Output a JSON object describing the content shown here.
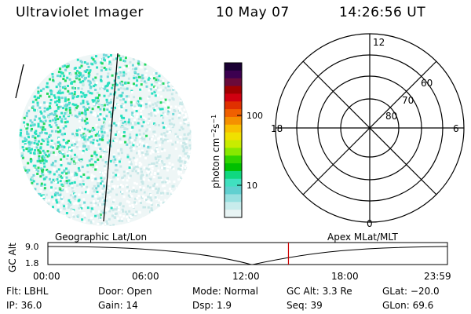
{
  "header": {
    "title": "Ultraviolet Imager",
    "date": "10 May 07",
    "time": "14:26:56 UT"
  },
  "colorbar": {
    "label": "photon cm-2s-1",
    "ticks": [
      "100",
      "10"
    ],
    "colors": [
      "#1a0033",
      "#3c0050",
      "#6a0a3a",
      "#a00000",
      "#d00010",
      "#e03000",
      "#f06000",
      "#f59000",
      "#f8c000",
      "#f0e000",
      "#c8ec00",
      "#88e800",
      "#30d400",
      "#00c000",
      "#10d880",
      "#40e0c0",
      "#60d0d0",
      "#98e0e0",
      "#c8ecec",
      "#e8f4f4"
    ]
  },
  "polar": {
    "mlt_labels": [
      "12",
      "18",
      "6",
      "0"
    ],
    "lat_labels": [
      "60",
      "70",
      "80"
    ]
  },
  "timeline": {
    "left_axis": "GC Alt",
    "y_ticks": [
      "9.0",
      "1.8"
    ],
    "left_label": "Geographic Lat/Lon",
    "right_label": "Apex MLat/MLT",
    "times": [
      "00:00",
      "06:00",
      "12:00",
      "18:00",
      "23:59"
    ],
    "marker_time_hours": 14.45,
    "marker_color": "#cc0000"
  },
  "info": {
    "flt": "Flt: LBHL",
    "ip": "IP: 36.0",
    "door": "Door: Open",
    "gain": "Gain: 14",
    "mode": "Mode: Normal",
    "dsp": "Dsp:     1.9",
    "gcalt": "GC Alt: 3.3 Re",
    "seq": "Seq: 39",
    "glat": "GLat: −20.0",
    "glon": "GLon:   69.6"
  }
}
